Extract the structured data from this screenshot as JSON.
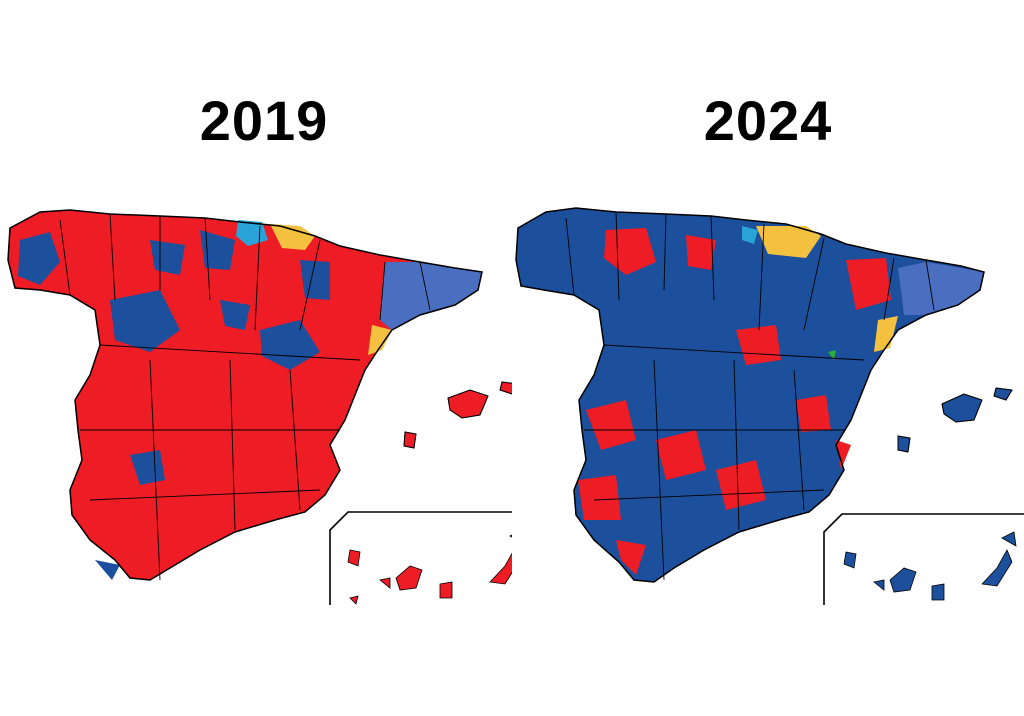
{
  "maps": [
    {
      "year": "2019",
      "majority_color": "#ee1c25",
      "minority_color": "#1c4f9c"
    },
    {
      "year": "2024",
      "majority_color": "#1c4f9c",
      "minority_color": "#ee1c25"
    }
  ],
  "colors": {
    "psoe_red": "#ee1c25",
    "pp_blue": "#1c4f9c",
    "junts_blue": "#4a6fc0",
    "basque_yellow": "#f4c040",
    "pnv_cyan": "#2aa3d8",
    "border": "#000000"
  }
}
